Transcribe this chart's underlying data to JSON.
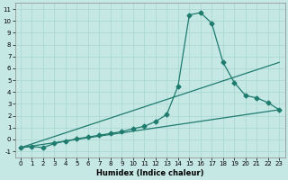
{
  "title": "",
  "xlabel": "Humidex (Indice chaleur)",
  "xlim": [
    -0.5,
    23.5
  ],
  "ylim": [
    -1.5,
    11.5
  ],
  "xticks": [
    0,
    1,
    2,
    3,
    4,
    5,
    6,
    7,
    8,
    9,
    10,
    11,
    12,
    13,
    14,
    15,
    16,
    17,
    18,
    19,
    20,
    21,
    22,
    23
  ],
  "yticks": [
    -1,
    0,
    1,
    2,
    3,
    4,
    5,
    6,
    7,
    8,
    9,
    10,
    11
  ],
  "background_color": "#c5e8e5",
  "grid_color": "#a8d5d0",
  "line_color": "#1e7b6e",
  "main_x": [
    0,
    1,
    2,
    3,
    4,
    5,
    6,
    7,
    8,
    9,
    10,
    11,
    12,
    13,
    14,
    15,
    16,
    17,
    18,
    19,
    20,
    21,
    22,
    23
  ],
  "main_y": [
    -0.7,
    -0.6,
    -0.7,
    -0.35,
    -0.15,
    0.05,
    0.2,
    0.35,
    0.5,
    0.65,
    0.9,
    1.1,
    1.5,
    2.1,
    4.5,
    10.5,
    10.7,
    9.8,
    6.5,
    4.8,
    3.7,
    3.5,
    3.1,
    2.5
  ],
  "line1_x": [
    0,
    23
  ],
  "line1_y": [
    -0.7,
    2.5
  ],
  "line2_x": [
    0,
    23
  ],
  "line2_y": [
    -0.7,
    6.5
  ],
  "markersize": 2.5,
  "linewidth": 0.9,
  "xlabel_fontsize": 6,
  "tick_labelsize": 5
}
